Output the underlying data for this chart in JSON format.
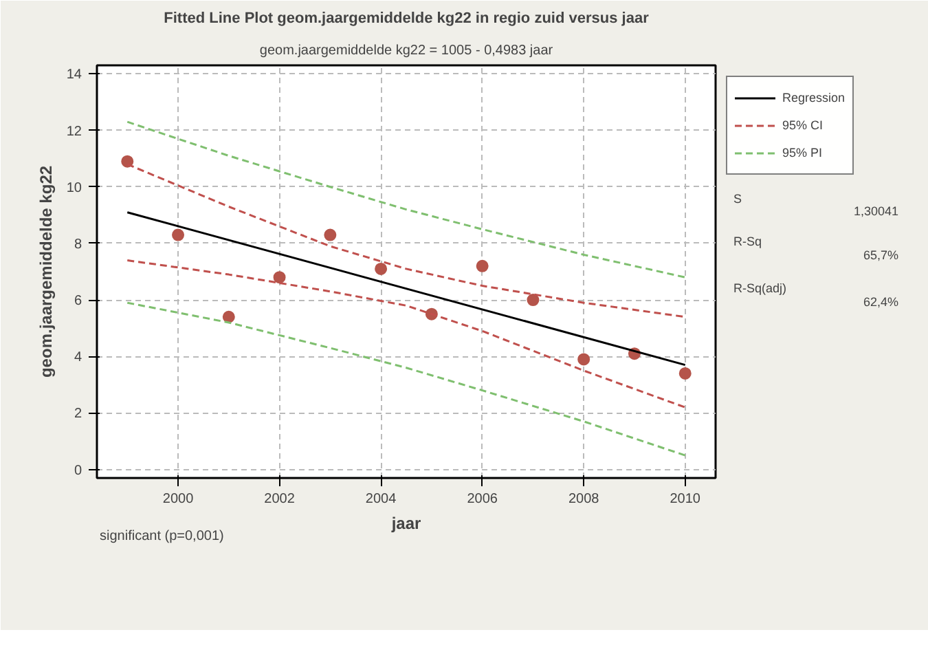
{
  "chart_data": {
    "type": "scatter",
    "title": "Fitted Line Plot geom.jaargemiddelde kg22 in regio zuid versus jaar",
    "subtitle": "geom.jaargemiddelde kg22 = 1005 - 0,4983 jaar",
    "xlabel": "jaar",
    "ylabel": "geom.jaargemiddelde kg22",
    "annotations": [
      "significant (p=0,001)",
      "S",
      "1,30041",
      "R-Sq",
      "65,7%",
      "R-Sq(adj)",
      "62,4%"
    ],
    "x": [
      1999,
      2000,
      2001,
      2002,
      2003,
      2004,
      2005,
      2006,
      2007,
      2008,
      2009,
      2010
    ],
    "series": [
      {
        "color": "#b5544a",
        "marker": "circle",
        "values": [
          10.9,
          8.3,
          5.4,
          6.8,
          8.3,
          7.1,
          5.5,
          7.2,
          6.0,
          3.9,
          4.1,
          3.4
        ]
      },
      {
        "type": "line",
        "name": "Regression",
        "color": "#000000",
        "line_style": "solid",
        "x": [
          1999,
          2010
        ],
        "values": [
          9.1,
          3.7
        ]
      },
      {
        "type": "line",
        "name": "95% CI",
        "color": "#c0504d",
        "line_style": "dashed",
        "x": [
          1999,
          2001,
          2003,
          2004.5,
          2006,
          2008,
          2010
        ],
        "values": [
          10.8,
          9.3,
          7.9,
          7.1,
          6.5,
          5.9,
          5.4
        ]
      },
      {
        "type": "line",
        "color": "#c0504d",
        "line_style": "dashed",
        "x": [
          1999,
          2001,
          2003,
          2004.5,
          2006,
          2008,
          2010
        ],
        "values": [
          7.4,
          6.9,
          6.3,
          5.8,
          4.9,
          3.5,
          2.2
        ]
      },
      {
        "type": "line",
        "name": "95% PI",
        "color": "#7fbf6f",
        "line_style": "dashed",
        "x": [
          1999,
          2001,
          2003,
          2004.5,
          2006,
          2008,
          2010
        ],
        "values": [
          12.3,
          11.1,
          10.0,
          9.2,
          8.5,
          7.6,
          6.8
        ]
      },
      {
        "type": "line",
        "color": "#7fbf6f",
        "line_style": "dashed",
        "x": [
          1999,
          2001,
          2003,
          2004.5,
          2006,
          2008,
          2010
        ],
        "values": [
          5.9,
          5.2,
          4.3,
          3.6,
          2.8,
          1.7,
          0.5
        ]
      }
    ],
    "xlim": [
      1998.4,
      2010.6
    ],
    "ylim": [
      -0.3,
      14.3
    ],
    "xticks": [
      2000,
      2002,
      2004,
      2006,
      2008,
      2010
    ],
    "yticks": [
      0,
      2,
      4,
      6,
      8,
      10,
      12,
      14
    ],
    "grid": true,
    "legend": "top right"
  }
}
